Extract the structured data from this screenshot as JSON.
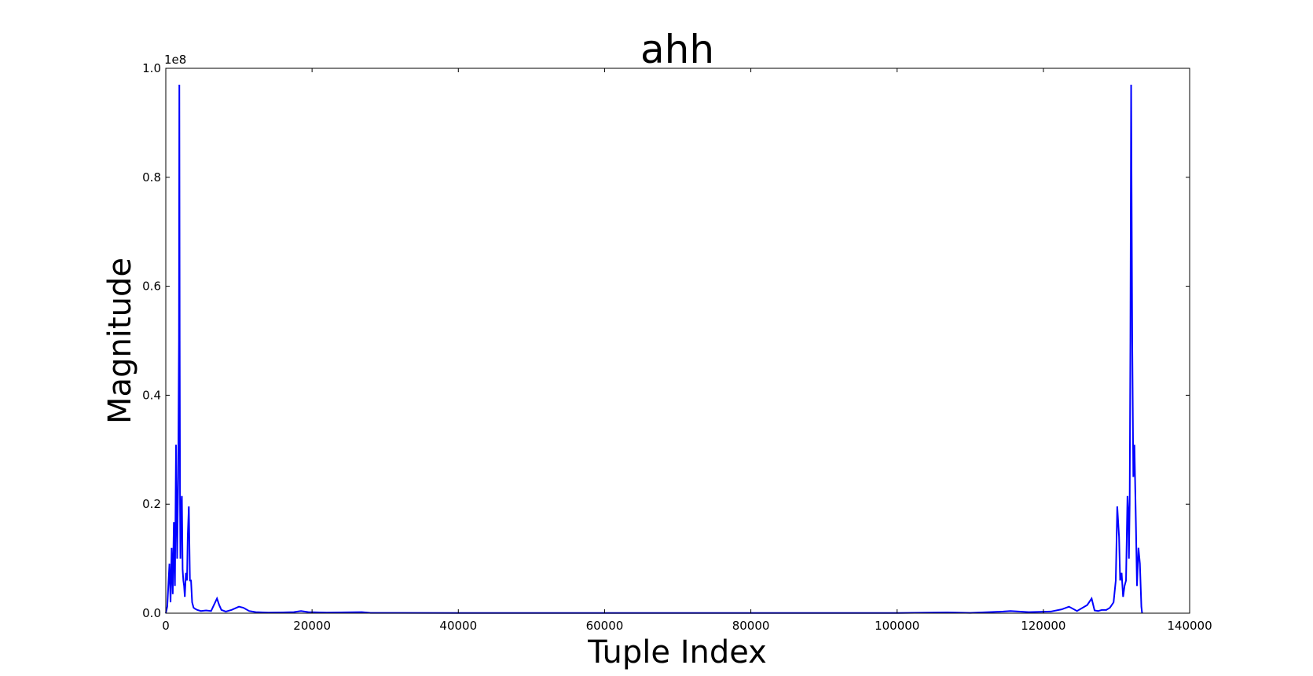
{
  "chart_data": {
    "type": "line",
    "title": "ahh",
    "xlabel": "Tuple Index",
    "ylabel": "Magnitude",
    "y_offset_text": "1e8",
    "xlim": [
      0,
      140000
    ],
    "ylim": [
      0,
      1.0
    ],
    "y_scale_factor": 100000000,
    "x_ticks": [
      0,
      20000,
      40000,
      60000,
      80000,
      100000,
      120000,
      140000
    ],
    "x_tick_labels": [
      "0",
      "20000",
      "40000",
      "60000",
      "80000",
      "100000",
      "120000",
      "140000"
    ],
    "y_ticks": [
      0.0,
      0.2,
      0.4,
      0.6,
      0.8,
      1.0
    ],
    "y_tick_labels": [
      "0.0",
      "0.2",
      "0.4",
      "0.6",
      "0.8",
      "1.0"
    ],
    "grid": false,
    "line_color": "#0000ff",
    "series": [
      {
        "x": [
          0,
          200,
          500,
          650,
          800,
          950,
          1100,
          1250,
          1400,
          1550,
          1700,
          1800,
          1850,
          1900,
          1950,
          2000,
          2100,
          2200,
          2300,
          2400,
          2500,
          2600,
          2750,
          2900,
          3000,
          3150,
          3300,
          3450,
          3600,
          3800,
          4000,
          4300,
          4800,
          5500,
          6200,
          7000,
          7300,
          7600,
          8200,
          9000,
          10000,
          10600,
          11400,
          12300,
          14000,
          16000,
          17500,
          18500,
          19500,
          22000,
          26800,
          28000,
          40000,
          60000,
          80000,
          100000,
          106900,
          110000,
          114500,
          115500,
          118000,
          121000,
          122500,
          123500,
          124600,
          126000,
          126600,
          127000,
          127500,
          128000,
          128600,
          129100,
          129600,
          129900,
          130100,
          130350,
          130500,
          130700,
          130900,
          131100,
          131300,
          131500,
          131600,
          131700,
          131800,
          131900,
          132000,
          132150,
          132300,
          132450,
          132650,
          132800,
          133000,
          133200,
          133400,
          133500
        ],
        "y": [
          0.0,
          0.012,
          0.091,
          0.02,
          0.12,
          0.035,
          0.167,
          0.05,
          0.309,
          0.1,
          0.25,
          0.5,
          0.97,
          0.5,
          0.2,
          0.1,
          0.188,
          0.215,
          0.08,
          0.06,
          0.05,
          0.03,
          0.074,
          0.06,
          0.14,
          0.196,
          0.06,
          0.06,
          0.02,
          0.01,
          0.008,
          0.006,
          0.004,
          0.005,
          0.004,
          0.027,
          0.015,
          0.006,
          0.003,
          0.006,
          0.012,
          0.01,
          0.004,
          0.002,
          0.001,
          0.0015,
          0.002,
          0.004,
          0.002,
          0.001,
          0.002,
          0.0005,
          0.0004,
          0.0003,
          0.0003,
          0.0004,
          0.0015,
          0.0005,
          0.003,
          0.004,
          0.002,
          0.003,
          0.007,
          0.012,
          0.004,
          0.015,
          0.027,
          0.005,
          0.004,
          0.006,
          0.006,
          0.01,
          0.02,
          0.06,
          0.196,
          0.14,
          0.06,
          0.074,
          0.03,
          0.05,
          0.06,
          0.215,
          0.188,
          0.1,
          0.2,
          0.5,
          0.97,
          0.5,
          0.25,
          0.309,
          0.167,
          0.05,
          0.12,
          0.091,
          0.012,
          0.0
        ]
      }
    ]
  }
}
